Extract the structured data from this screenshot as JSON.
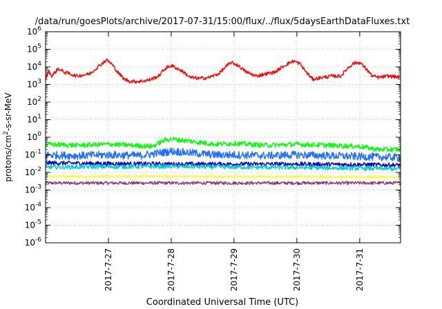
{
  "chart_data": {
    "type": "line",
    "title": "/data/run/goesPlots/archive/2017-07-31/15:00/flux/../flux/5daysEarthDataFluxes.txt",
    "xlabel": "Coordinated Universal Time (UTC)",
    "ylabel": {
      "pre": "protons/cm",
      "sup": "2",
      "post": "-s-sr-MeV"
    },
    "yscale": "log",
    "ylim_exp": [
      -6,
      6
    ],
    "y_tick_exponents": [
      -6,
      -5,
      -4,
      -3,
      -2,
      -1,
      0,
      1,
      2,
      3,
      4,
      5,
      6
    ],
    "y_tick_base": "10",
    "xlim_days": [
      26.0,
      31.65
    ],
    "x_ticks": [
      {
        "day": 27,
        "label": "2017-7-27"
      },
      {
        "day": 28,
        "label": "2017-7-28"
      },
      {
        "day": 29,
        "label": "2017-7-29"
      },
      {
        "day": 30,
        "label": "2017-7-30"
      },
      {
        "day": 31,
        "label": "2017-7-31"
      }
    ],
    "grid": true,
    "series": [
      {
        "color": "#ff0000",
        "noise": 0.1,
        "points": [
          [
            26.0,
            2000.0
          ],
          [
            26.05,
            6000.0
          ],
          [
            26.1,
            3000.0
          ],
          [
            26.2,
            8000.0
          ],
          [
            26.3,
            5000.0
          ],
          [
            26.5,
            3000.0
          ],
          [
            26.6,
            3500.0
          ],
          [
            26.7,
            4000.0
          ],
          [
            26.8,
            8000.0
          ],
          [
            26.9,
            16000.0
          ],
          [
            26.97,
            25000.0
          ],
          [
            27.05,
            15000.0
          ],
          [
            27.15,
            5000.0
          ],
          [
            27.25,
            2000.0
          ],
          [
            27.35,
            1500.0
          ],
          [
            27.5,
            1500.0
          ],
          [
            27.65,
            1800.0
          ],
          [
            27.8,
            3000.0
          ],
          [
            27.9,
            8000.0
          ],
          [
            28.0,
            12000.0
          ],
          [
            28.1,
            8000.0
          ],
          [
            28.2,
            5000.0
          ],
          [
            28.3,
            2500.0
          ],
          [
            28.45,
            2200.0
          ],
          [
            28.6,
            2500.0
          ],
          [
            28.75,
            4000.0
          ],
          [
            28.87,
            10000.0
          ],
          [
            28.95,
            18000.0
          ],
          [
            29.05,
            13000.0
          ],
          [
            29.2,
            5000.0
          ],
          [
            29.35,
            3000.0
          ],
          [
            29.5,
            4000.0
          ],
          [
            29.65,
            5000.0
          ],
          [
            29.75,
            9000.0
          ],
          [
            29.85,
            15000.0
          ],
          [
            29.95,
            22000.0
          ],
          [
            30.05,
            15000.0
          ],
          [
            30.15,
            5000.0
          ],
          [
            30.25,
            2000.0
          ],
          [
            30.4,
            2500.0
          ],
          [
            30.55,
            3000.0
          ],
          [
            30.7,
            3000.0
          ],
          [
            30.8,
            8000.0
          ],
          [
            30.9,
            16000.0
          ],
          [
            31.0,
            18000.0
          ],
          [
            31.1,
            8000.0
          ],
          [
            31.2,
            3000.0
          ],
          [
            31.3,
            2500.0
          ],
          [
            31.45,
            3000.0
          ],
          [
            31.55,
            2800.0
          ],
          [
            31.65,
            2500.0
          ]
        ]
      },
      {
        "color": "#00ff00",
        "noise": 0.14,
        "points": [
          [
            26.0,
            0.4
          ],
          [
            26.5,
            0.35
          ],
          [
            27.0,
            0.4
          ],
          [
            27.4,
            0.35
          ],
          [
            27.7,
            0.3
          ],
          [
            27.9,
            0.7
          ],
          [
            28.0,
            0.8
          ],
          [
            28.3,
            0.6
          ],
          [
            28.7,
            0.4
          ],
          [
            29.0,
            0.45
          ],
          [
            29.5,
            0.35
          ],
          [
            30.0,
            0.4
          ],
          [
            30.5,
            0.35
          ],
          [
            31.0,
            0.3
          ],
          [
            31.3,
            0.2
          ],
          [
            31.65,
            0.2
          ]
        ]
      },
      {
        "color": "#1e6fff",
        "noise": 0.22,
        "points": [
          [
            26.0,
            0.1
          ],
          [
            26.5,
            0.09
          ],
          [
            27.0,
            0.1
          ],
          [
            27.5,
            0.09
          ],
          [
            28.0,
            0.16
          ],
          [
            28.3,
            0.13
          ],
          [
            28.7,
            0.1
          ],
          [
            29.0,
            0.1
          ],
          [
            29.5,
            0.09
          ],
          [
            30.0,
            0.1
          ],
          [
            30.5,
            0.09
          ],
          [
            31.0,
            0.08
          ],
          [
            31.65,
            0.07
          ]
        ]
      },
      {
        "color": "#00cccc",
        "noise": 0.12,
        "points": [
          [
            26.0,
            0.02
          ],
          [
            27.0,
            0.021
          ],
          [
            28.0,
            0.022
          ],
          [
            29.0,
            0.02
          ],
          [
            30.0,
            0.019
          ],
          [
            31.0,
            0.017
          ],
          [
            31.65,
            0.016
          ]
        ]
      },
      {
        "color": "#0000cc",
        "noise": 0.12,
        "points": [
          [
            26.0,
            0.035
          ],
          [
            27.0,
            0.032
          ],
          [
            28.0,
            0.03
          ],
          [
            29.0,
            0.03
          ],
          [
            30.0,
            0.03
          ],
          [
            31.0,
            0.028
          ],
          [
            31.65,
            0.026
          ]
        ]
      },
      {
        "color": "#ffff00",
        "noise": 0.05,
        "points": [
          [
            26.0,
            0.006
          ],
          [
            27.0,
            0.006
          ],
          [
            28.0,
            0.006
          ],
          [
            29.0,
            0.0058
          ],
          [
            30.0,
            0.0058
          ],
          [
            31.0,
            0.0055
          ],
          [
            31.65,
            0.0055
          ]
        ]
      },
      {
        "color": "#993366",
        "noise": 0.09,
        "points": [
          [
            26.0,
            0.0025
          ],
          [
            27.0,
            0.0025
          ],
          [
            28.0,
            0.0025
          ],
          [
            29.0,
            0.0025
          ],
          [
            30.0,
            0.0025
          ],
          [
            31.0,
            0.0025
          ],
          [
            31.65,
            0.0025
          ]
        ]
      }
    ]
  }
}
